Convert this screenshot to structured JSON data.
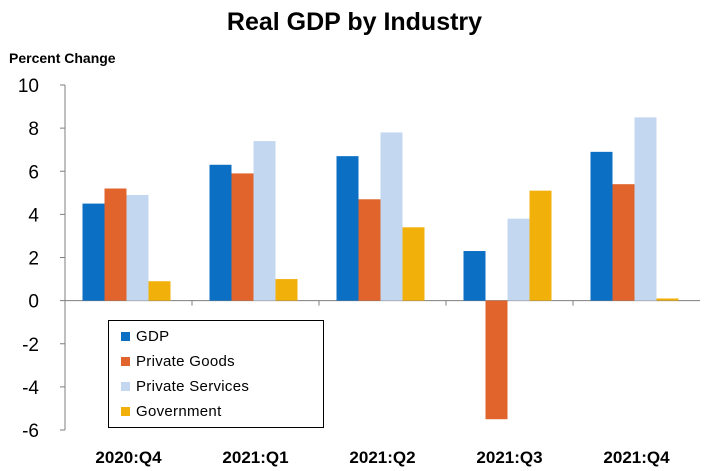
{
  "chart_data": {
    "type": "bar",
    "title": "Real GDP by Industry",
    "ylabel": "Percent Change",
    "xlabel": "",
    "ylim": [
      -6,
      10
    ],
    "yticks": [
      10,
      8,
      6,
      4,
      2,
      0,
      -2,
      -4,
      -6
    ],
    "grid": false,
    "legend_placement": "bottom-left",
    "categories": [
      "2020:Q4",
      "2021:Q1",
      "2021:Q2",
      "2021:Q3",
      "2021:Q4"
    ],
    "series": [
      {
        "name": "GDP",
        "color": "#0b6fc4",
        "values": [
          4.5,
          6.3,
          6.7,
          2.3,
          6.9
        ]
      },
      {
        "name": "Private Goods",
        "color": "#e0642c",
        "values": [
          5.2,
          5.9,
          4.7,
          -5.5,
          5.4
        ]
      },
      {
        "name": "Private Services",
        "color": "#c4d7f1",
        "values": [
          4.9,
          7.4,
          7.8,
          3.8,
          8.5
        ]
      },
      {
        "name": "Government",
        "color": "#f2b00a",
        "values": [
          0.9,
          1.0,
          3.4,
          5.1,
          0.1
        ]
      }
    ]
  }
}
